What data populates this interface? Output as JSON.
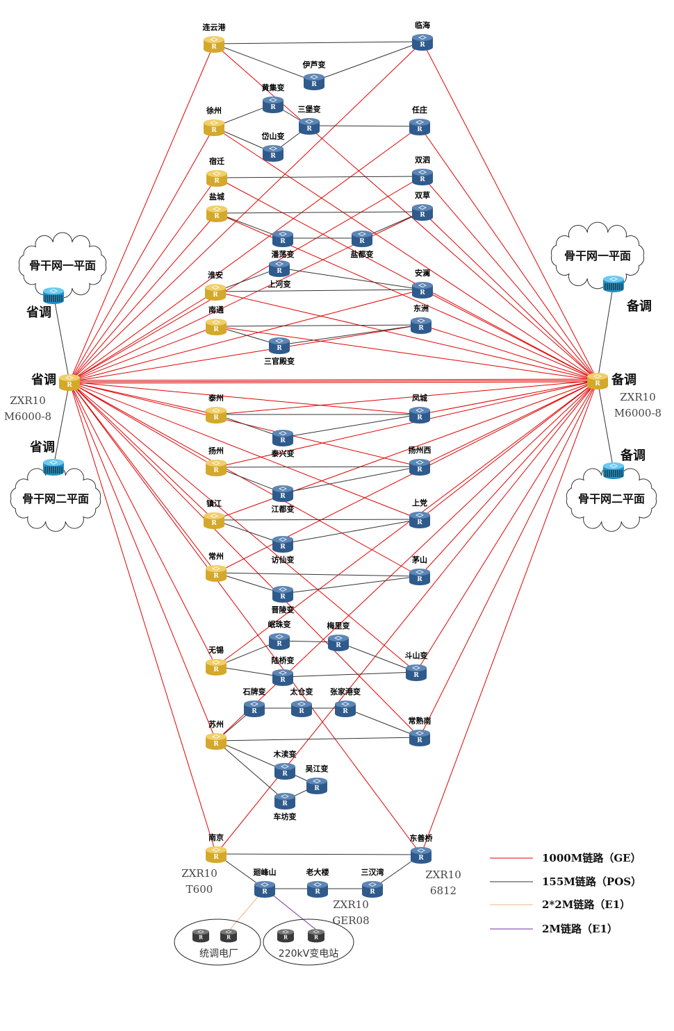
{
  "colors": {
    "ge": "#e00000",
    "pos": "#333333",
    "e1x2": "#f4b183",
    "e1": "#7030a0",
    "core_router": "#d4a82a",
    "access_router": "#2f5a8c",
    "end_router": "#3a3a3a",
    "switch": "#1e8fc8"
  },
  "hubs": {
    "left": {
      "label": "省调",
      "model_line1": "ZXR10",
      "model_line2": "M6000-8",
      "plane1_label": "省调",
      "plane2_label": "省调"
    },
    "right": {
      "label": "备调",
      "model_line1": "ZXR10",
      "model_line2": "M6000-8",
      "plane1_label": "备调",
      "plane2_label": "备调"
    }
  },
  "clouds": {
    "left_top": "骨干网一平面",
    "left_bottom": "骨干网二平面",
    "right_top": "骨干网一平面",
    "right_bottom": "骨干网二平面"
  },
  "nodes": {
    "lyg": "连云港",
    "lh": "临海",
    "yl": "伊芦变",
    "hj": "黄集变",
    "xz": "徐州",
    "sb": "三堡变",
    "rz": "任庄",
    "ds": "岱山变",
    "sq": "宿迁",
    "ss": "双泗",
    "yc": "盐城",
    "sc": "双草",
    "pd": "潘荡变",
    "ydu": "盐都变",
    "ha": "淮安",
    "shh": "上河变",
    "al": "安澜",
    "nt": "南通",
    "dz": "东洲",
    "sgd": "三官殿变",
    "tz": "泰州",
    "fc": "凤城",
    "tx": "泰兴变",
    "yz": "扬州",
    "yzx": "扬州西",
    "jd": "江都变",
    "zj": "镇江",
    "sd": "上党",
    "fx": "访仙变",
    "cz": "常州",
    "ms": "茅山",
    "jl": "晋陵变",
    "wx": "无锡",
    "mz": "岷珠变",
    "ml": "梅里变",
    "lq": "陆桥变",
    "dsb": "斗山变",
    "suz": "苏州",
    "sp": "石牌变",
    "tc": "太仓变",
    "zjg": "张家港变",
    "csn": "常熟南",
    "md": "木渎变",
    "wj": "吴江变",
    "cf": "车坊变",
    "nj": "南京",
    "dsq": "东善桥",
    "hfs": "廻峰山",
    "ldl": "老大楼",
    "shw": "三汉湾"
  },
  "models": {
    "nj": [
      "ZXR10",
      "T600"
    ],
    "dsq": [
      "ZXR10",
      "6812"
    ],
    "ger": [
      "ZXR10",
      "GER08"
    ]
  },
  "end_groups": {
    "power_plant": "统调电厂",
    "substation": "220kV变电站"
  },
  "links_pos": [
    [
      "lyg",
      "lh"
    ],
    [
      "lyg",
      "yl"
    ],
    [
      "yl",
      "lh"
    ],
    [
      "xz",
      "hj"
    ],
    [
      "xz",
      "ds"
    ],
    [
      "hj",
      "sb"
    ],
    [
      "ds",
      "sb"
    ],
    [
      "sb",
      "rz"
    ],
    [
      "sq",
      "ss"
    ],
    [
      "yc",
      "sc"
    ],
    [
      "yc",
      "pd"
    ],
    [
      "pd",
      "ydu"
    ],
    [
      "ydu",
      "sc"
    ],
    [
      "ha",
      "shh"
    ],
    [
      "shh",
      "al"
    ],
    [
      "ha",
      "al"
    ],
    [
      "nt",
      "dz"
    ],
    [
      "nt",
      "sgd"
    ],
    [
      "sgd",
      "dz"
    ],
    [
      "tz",
      "fc"
    ],
    [
      "tz",
      "tx"
    ],
    [
      "tx",
      "fc"
    ],
    [
      "yz",
      "yzx"
    ],
    [
      "yz",
      "jd"
    ],
    [
      "jd",
      "yzx"
    ],
    [
      "zj",
      "sd"
    ],
    [
      "zj",
      "fx"
    ],
    [
      "fx",
      "sd"
    ],
    [
      "cz",
      "ms"
    ],
    [
      "cz",
      "jl"
    ],
    [
      "jl",
      "ms"
    ],
    [
      "wx",
      "mz"
    ],
    [
      "mz",
      "ml"
    ],
    [
      "ml",
      "dsb"
    ],
    [
      "wx",
      "lq"
    ],
    [
      "lq",
      "dsb"
    ],
    [
      "suz",
      "sp"
    ],
    [
      "sp",
      "tc"
    ],
    [
      "tc",
      "zjg"
    ],
    [
      "zjg",
      "csn"
    ],
    [
      "suz",
      "csn"
    ],
    [
      "suz",
      "md"
    ],
    [
      "suz",
      "cf"
    ],
    [
      "md",
      "wj"
    ],
    [
      "cf",
      "wj"
    ],
    [
      "nj",
      "dsq"
    ],
    [
      "nj",
      "hfs"
    ],
    [
      "hfs",
      "ldl"
    ],
    [
      "ldl",
      "shw"
    ],
    [
      "shw",
      "dsq"
    ]
  ],
  "links_ge_left": [
    "lyg",
    "xz",
    "sq",
    "yc",
    "ha",
    "nt",
    "tz",
    "yz",
    "zj",
    "cz",
    "wx",
    "suz",
    "nj"
  ],
  "links_ge_right": [
    "lh",
    "rz",
    "ss",
    "sc",
    "al",
    "dz",
    "fc",
    "yzx",
    "sd",
    "ms",
    "dsb",
    "csn",
    "dsq"
  ],
  "legend": [
    {
      "key": "ge",
      "label": "1000M链路（GE）"
    },
    {
      "key": "pos",
      "label": "155M链路（POS）"
    },
    {
      "key": "e1x2",
      "label": "2*2M链路（E1）"
    },
    {
      "key": "e1",
      "label": "2M链路（E1）"
    }
  ]
}
